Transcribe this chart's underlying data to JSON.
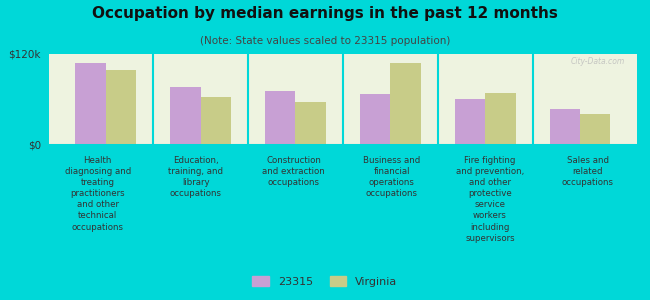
{
  "title": "Occupation by median earnings in the past 12 months",
  "subtitle": "(Note: State values scaled to 23315 population)",
  "background_color": "#00d8d8",
  "plot_bg_color": "#eef3e0",
  "bar_color_23315": "#c8a0d4",
  "bar_color_virginia": "#c8cc88",
  "ylim": [
    0,
    120000
  ],
  "ytick_labels": [
    "$0",
    "$120k"
  ],
  "categories": [
    "Health\ndiagnosing and\ntreating\npractitioners\nand other\ntechnical\noccupations",
    "Education,\ntraining, and\nlibrary\noccupations",
    "Construction\nand extraction\noccupations",
    "Business and\nfinancial\noperations\noccupations",
    "Fire fighting\nand prevention,\nand other\nprotective\nservice\nworkers\nincluding\nsupervisors",
    "Sales and\nrelated\noccupations"
  ],
  "values_23315": [
    108000,
    76000,
    71000,
    66000,
    60000,
    46000
  ],
  "values_virginia": [
    98000,
    63000,
    56000,
    108000,
    68000,
    40000
  ],
  "legend_labels": [
    "23315",
    "Virginia"
  ],
  "watermark": "City-Data.com",
  "title_fontsize": 11,
  "subtitle_fontsize": 7.5,
  "tick_label_fontsize": 6.2,
  "ytick_fontsize": 7.5
}
